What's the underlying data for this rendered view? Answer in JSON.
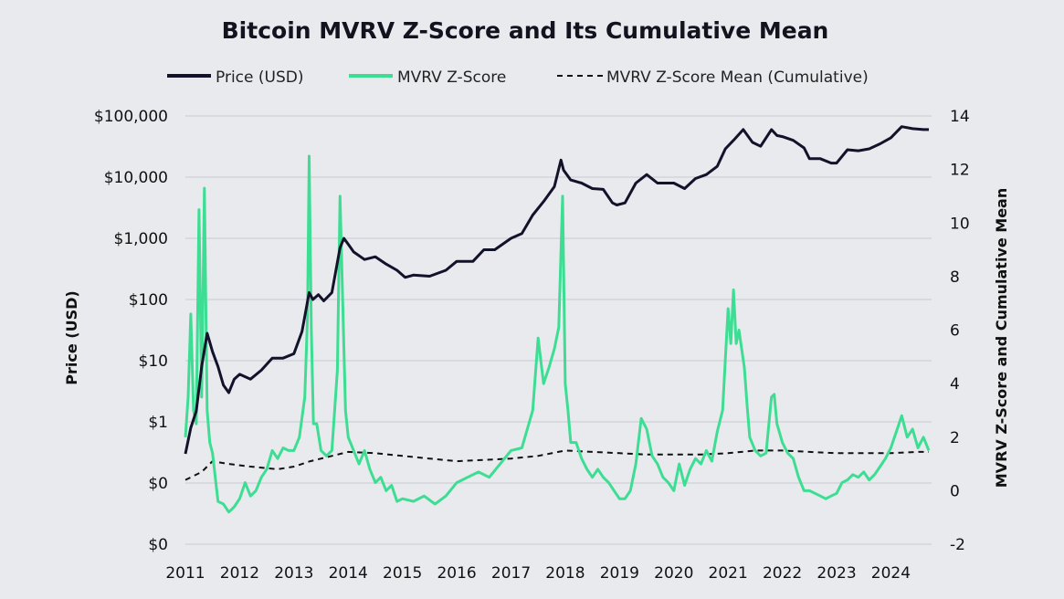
{
  "chart_data": {
    "type": "line",
    "title": "Bitcoin MVRV Z-Score and Its Cumulative Mean",
    "xlabel": "",
    "ylabel_left": "Price (USD)",
    "ylabel_right": "MVRV Z-Score and Cumulative Mean",
    "y_left_scale": "log",
    "y_left_ticks": [
      "$0",
      "$0",
      "$1",
      "$10",
      "$100",
      "$1,000",
      "$10,000",
      "$100,000"
    ],
    "y_left_tick_values": [
      0.01,
      0.1,
      1,
      10,
      100,
      1000,
      10000,
      100000
    ],
    "y_right_ticks": [
      "-2",
      "0",
      "2",
      "4",
      "6",
      "8",
      "10",
      "12",
      "14"
    ],
    "y_right_range": [
      -2,
      14
    ],
    "x_ticks": [
      "2011",
      "2012",
      "2013",
      "2014",
      "2015",
      "2016",
      "2017",
      "2018",
      "2019",
      "2020",
      "2021",
      "2022",
      "2023",
      "2024"
    ],
    "x_range": [
      2011.0,
      2024.75
    ],
    "legend": [
      "Price (USD)",
      "MVRV Z-Score",
      "MVRV Z-Score Mean (Cumulative)"
    ],
    "grid": true,
    "series": [
      {
        "name": "Price (USD)",
        "axis": "left",
        "color": "#12122a",
        "style": "solid",
        "x": [
          2011.0,
          2011.1,
          2011.2,
          2011.3,
          2011.4,
          2011.45,
          2011.5,
          2011.6,
          2011.7,
          2011.8,
          2011.9,
          2012.0,
          2012.2,
          2012.4,
          2012.6,
          2012.8,
          2013.0,
          2013.15,
          2013.28,
          2013.35,
          2013.45,
          2013.55,
          2013.7,
          2013.85,
          2013.92,
          2014.0,
          2014.1,
          2014.3,
          2014.5,
          2014.7,
          2014.9,
          2015.05,
          2015.2,
          2015.5,
          2015.8,
          2016.0,
          2016.3,
          2016.5,
          2016.7,
          2017.0,
          2017.2,
          2017.4,
          2017.6,
          2017.8,
          2017.92,
          2017.97,
          2018.1,
          2018.3,
          2018.5,
          2018.7,
          2018.87,
          2018.95,
          2019.1,
          2019.3,
          2019.5,
          2019.7,
          2020.0,
          2020.2,
          2020.4,
          2020.6,
          2020.8,
          2020.95,
          2021.1,
          2021.28,
          2021.45,
          2021.6,
          2021.8,
          2021.9,
          2022.0,
          2022.2,
          2022.4,
          2022.5,
          2022.7,
          2022.9,
          2023.0,
          2023.2,
          2023.4,
          2023.6,
          2023.8,
          2024.0,
          2024.2,
          2024.4,
          2024.6,
          2024.7
        ],
        "values": [
          0.3,
          0.8,
          1.5,
          8,
          28,
          20,
          14,
          8,
          4,
          3,
          5,
          6,
          5,
          7,
          11,
          11,
          13,
          30,
          130,
          100,
          120,
          95,
          130,
          700,
          1000,
          800,
          600,
          450,
          500,
          380,
          300,
          230,
          250,
          240,
          300,
          420,
          420,
          650,
          650,
          1000,
          1200,
          2400,
          4000,
          7000,
          19000,
          13000,
          9000,
          8000,
          6500,
          6300,
          3800,
          3500,
          3800,
          8000,
          11000,
          8000,
          8000,
          6500,
          9500,
          11000,
          15000,
          29000,
          40000,
          60000,
          37000,
          32000,
          60000,
          48000,
          46000,
          40000,
          30000,
          20000,
          20000,
          17000,
          17000,
          28000,
          27000,
          29000,
          35000,
          44000,
          67000,
          62000,
          60000,
          60000
        ]
      },
      {
        "name": "MVRV Z-Score",
        "axis": "right",
        "color": "#3dde93",
        "style": "solid",
        "x": [
          2011.0,
          2011.05,
          2011.1,
          2011.15,
          2011.2,
          2011.25,
          2011.3,
          2011.35,
          2011.4,
          2011.45,
          2011.5,
          2011.55,
          2011.6,
          2011.7,
          2011.8,
          2011.9,
          2012.0,
          2012.1,
          2012.2,
          2012.3,
          2012.4,
          2012.5,
          2012.6,
          2012.7,
          2012.8,
          2012.9,
          2013.0,
          2013.1,
          2013.2,
          2013.25,
          2013.28,
          2013.32,
          2013.36,
          2013.42,
          2013.5,
          2013.6,
          2013.7,
          2013.8,
          2013.85,
          2013.9,
          2013.95,
          2014.0,
          2014.1,
          2014.2,
          2014.3,
          2014.4,
          2014.5,
          2014.6,
          2014.7,
          2014.8,
          2014.9,
          2015.0,
          2015.2,
          2015.4,
          2015.6,
          2015.8,
          2016.0,
          2016.2,
          2016.4,
          2016.6,
          2016.8,
          2017.0,
          2017.2,
          2017.4,
          2017.5,
          2017.6,
          2017.7,
          2017.8,
          2017.88,
          2017.95,
          2018.0,
          2018.05,
          2018.1,
          2018.2,
          2018.3,
          2018.4,
          2018.5,
          2018.6,
          2018.7,
          2018.8,
          2018.9,
          2019.0,
          2019.1,
          2019.2,
          2019.3,
          2019.4,
          2019.5,
          2019.6,
          2019.7,
          2019.8,
          2019.9,
          2020.0,
          2020.1,
          2020.2,
          2020.3,
          2020.4,
          2020.5,
          2020.6,
          2020.7,
          2020.8,
          2020.9,
          2021.0,
          2021.05,
          2021.1,
          2021.15,
          2021.2,
          2021.3,
          2021.35,
          2021.4,
          2021.5,
          2021.6,
          2021.7,
          2021.8,
          2021.85,
          2021.9,
          2022.0,
          2022.1,
          2022.2,
          2022.3,
          2022.4,
          2022.5,
          2022.6,
          2022.7,
          2022.8,
          2022.9,
          2023.0,
          2023.1,
          2023.2,
          2023.3,
          2023.4,
          2023.5,
          2023.6,
          2023.7,
          2023.8,
          2023.9,
          2024.0,
          2024.1,
          2024.2,
          2024.3,
          2024.4,
          2024.5,
          2024.6,
          2024.7
        ],
        "values": [
          2.0,
          3.5,
          6.6,
          3.0,
          2.5,
          10.5,
          3.5,
          11.3,
          3.0,
          1.8,
          1.4,
          0.5,
          -0.4,
          -0.5,
          -0.8,
          -0.6,
          -0.3,
          0.3,
          -0.2,
          0.0,
          0.5,
          0.8,
          1.5,
          1.2,
          1.6,
          1.5,
          1.5,
          2.0,
          3.5,
          6.5,
          12.5,
          6.0,
          2.5,
          2.5,
          1.5,
          1.3,
          1.5,
          4.5,
          11.0,
          7.0,
          3.0,
          2.0,
          1.5,
          1.0,
          1.5,
          0.8,
          0.3,
          0.5,
          0.0,
          0.2,
          -0.4,
          -0.3,
          -0.4,
          -0.2,
          -0.5,
          -0.2,
          0.3,
          0.5,
          0.7,
          0.5,
          1.0,
          1.5,
          1.6,
          3.0,
          5.7,
          4.0,
          4.6,
          5.3,
          6.1,
          11.0,
          4.0,
          3.0,
          1.8,
          1.8,
          1.2,
          0.8,
          0.5,
          0.8,
          0.5,
          0.3,
          0.0,
          -0.3,
          -0.3,
          0.0,
          1.0,
          2.7,
          2.3,
          1.3,
          1.0,
          0.5,
          0.3,
          0.0,
          1.0,
          0.2,
          0.8,
          1.2,
          1.0,
          1.5,
          1.1,
          2.2,
          3.0,
          6.8,
          5.5,
          7.5,
          5.5,
          6.0,
          4.6,
          3.2,
          2.0,
          1.5,
          1.3,
          1.4,
          3.5,
          3.6,
          2.5,
          1.8,
          1.4,
          1.2,
          0.5,
          0.0,
          0.0,
          -0.1,
          -0.2,
          -0.3,
          -0.2,
          -0.1,
          0.3,
          0.4,
          0.6,
          0.5,
          0.7,
          0.4,
          0.6,
          0.9,
          1.2,
          1.6,
          2.2,
          2.8,
          2.0,
          2.3,
          1.6,
          2.0,
          1.5
        ]
      },
      {
        "name": "MVRV Z-Score Mean (Cumulative)",
        "axis": "right",
        "color": "#111111",
        "style": "dashed",
        "x": [
          2011.0,
          2011.3,
          2011.5,
          2011.8,
          2012.2,
          2012.7,
          2013.0,
          2013.3,
          2013.7,
          2014.0,
          2014.5,
          2015.0,
          2015.5,
          2016.0,
          2016.5,
          2017.0,
          2017.5,
          2018.0,
          2018.5,
          2019.0,
          2019.5,
          2020.0,
          2020.5,
          2021.0,
          2021.5,
          2022.0,
          2022.5,
          2023.0,
          2023.5,
          2024.0,
          2024.5,
          2024.7
        ],
        "values": [
          0.4,
          0.7,
          1.1,
          1.0,
          0.9,
          0.8,
          0.9,
          1.1,
          1.3,
          1.45,
          1.4,
          1.3,
          1.2,
          1.1,
          1.15,
          1.2,
          1.3,
          1.5,
          1.45,
          1.4,
          1.35,
          1.35,
          1.35,
          1.4,
          1.5,
          1.5,
          1.45,
          1.4,
          1.4,
          1.4,
          1.45,
          1.45
        ]
      }
    ]
  },
  "colors": {
    "background": "#e9eaee",
    "price": "#12122a",
    "zscore": "#3dde93",
    "mean": "#111111",
    "grid": "#c9cad0"
  }
}
